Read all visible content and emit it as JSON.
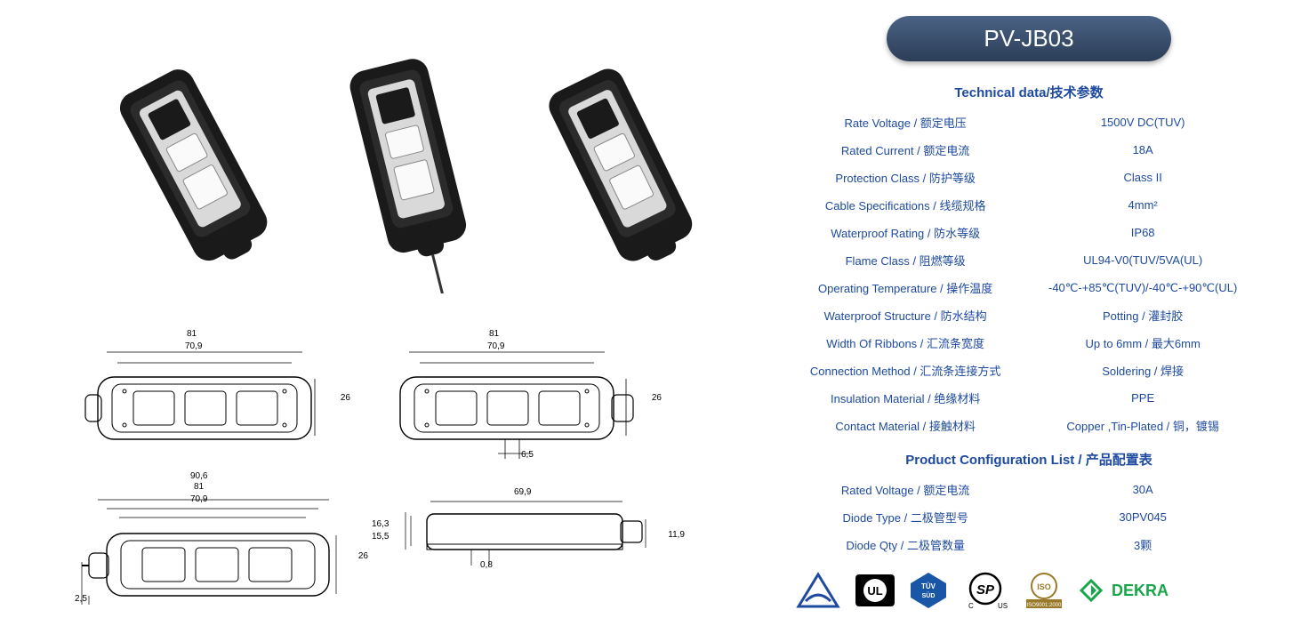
{
  "title": "PV-JB03",
  "tech_header": "Technical data/技术参数",
  "config_header": "Product Configuration List /  产品配置表",
  "colors": {
    "pill_bg_top": "#4a6285",
    "pill_bg_bot": "#2c3e57",
    "text_blue": "#1e4aa0",
    "body_black": "#1a1a1a",
    "metal": "#c8c8c8",
    "dekra_green": "#18a64a"
  },
  "tech_rows": [
    {
      "label": "Rate Voltage / 额定电压",
      "value": "1500V DC(TUV)"
    },
    {
      "label": "Rated  Current  / 额定电流",
      "value": "18A"
    },
    {
      "label": "Protection Class / 防护等级",
      "value": "Class II"
    },
    {
      "label": "Cable Specifications / 线缆规格",
      "value": "4mm²"
    },
    {
      "label": "Waterproof Rating / 防水等级",
      "value": "IP68"
    },
    {
      "label": "Flame Class / 阻燃等级",
      "value": "UL94-V0(TUV/5VA(UL)"
    },
    {
      "label": "Operating Temperature / 操作温度",
      "value": "-40℃-+85℃(TUV)/-40℃-+90℃(UL)"
    },
    {
      "label": "Waterproof Structure / 防水结构",
      "value": "Potting / 灌封胶"
    },
    {
      "label": "Width Of Ribbons / 汇流条宽度",
      "value": "Up to 6mm / 最大6mm"
    },
    {
      "label": "Connection Method / 汇流条连接方式",
      "value": "Soldering / 焊接"
    },
    {
      "label": "Insulation Material / 绝缘材料",
      "value": "PPE"
    },
    {
      "label": "Contact Material / 接触材料",
      "value": "Copper ,Tin-Plated / 铜，镀锡"
    }
  ],
  "config_rows": [
    {
      "label": "Rated Voltage / 额定电流",
      "value": "30A"
    },
    {
      "label": "Diode Type / 二极管型号",
      "value": "30PV045"
    },
    {
      "label": "Diode Qty / 二极管数量",
      "value": "3颗"
    }
  ],
  "dims": {
    "top_w1": "81",
    "top_w2": "70,9",
    "top_h": "26",
    "top2_w1": "81",
    "top2_w2": "70,9",
    "top2_h": "26",
    "top2_g": "6,5",
    "bot_w1": "90,6",
    "bot_w2": "81",
    "bot_w3": "70,9",
    "bot_h": "26",
    "bot_l": "2,5",
    "side_w": "69,9",
    "side_h1": "16,3",
    "side_h2": "15,5",
    "side_g": "0,8",
    "side_r": "11,9"
  },
  "certs": [
    "TUV-triangle",
    "UL",
    "TUV-SUD",
    "CSA",
    "ISO9001",
    "DEKRA"
  ],
  "dekra_text": "DEKRA"
}
